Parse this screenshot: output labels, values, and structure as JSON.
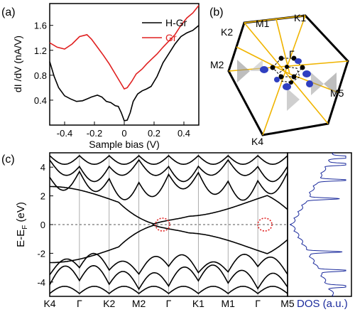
{
  "figure": {
    "panel_labels": [
      "(a)",
      "(b)",
      "(c)"
    ]
  },
  "chart_data": [
    {
      "panel": "(a)",
      "type": "line",
      "xlabel": "Sample bias (V)",
      "ylabel": "dI /dV  (nA/V)",
      "xlim": [
        -0.5,
        0.5
      ],
      "ylim": [
        0.0,
        1.95
      ],
      "xticks": [
        -0.4,
        -0.2,
        0,
        0.2,
        0.4
      ],
      "xtick_labels": [
        "-0.4",
        "-0.2",
        "0",
        "0.2",
        "0.4"
      ],
      "yticks": [
        0.4,
        0.8,
        1.2,
        1.6
      ],
      "ytick_labels": [
        "0.4",
        "0.8",
        "1.2",
        "1.6"
      ],
      "legend_position": "top-right",
      "series": [
        {
          "name": "H-Gr",
          "color": "#000000",
          "x": [
            -0.5,
            -0.47,
            -0.44,
            -0.4,
            -0.36,
            -0.32,
            -0.28,
            -0.25,
            -0.22,
            -0.18,
            -0.15,
            -0.12,
            -0.09,
            -0.06,
            -0.04,
            -0.02,
            0.0,
            0.02,
            0.04,
            0.06,
            0.09,
            0.12,
            0.15,
            0.18,
            0.22,
            0.26,
            0.3,
            0.34,
            0.38,
            0.42,
            0.46,
            0.5
          ],
          "y": [
            1.02,
            0.78,
            0.6,
            0.47,
            0.42,
            0.38,
            0.39,
            0.42,
            0.45,
            0.48,
            0.45,
            0.38,
            0.36,
            0.31,
            0.3,
            0.2,
            0.07,
            0.08,
            0.2,
            0.38,
            0.5,
            0.55,
            0.58,
            0.62,
            0.78,
            1.0,
            1.15,
            1.3,
            1.42,
            1.48,
            1.52,
            1.6
          ]
        },
        {
          "name": "Gr",
          "color": "#e02020",
          "x": [
            -0.5,
            -0.45,
            -0.4,
            -0.35,
            -0.3,
            -0.25,
            -0.22,
            -0.18,
            -0.14,
            -0.1,
            -0.06,
            -0.03,
            0.0,
            0.02,
            0.05,
            0.08,
            0.12,
            0.15,
            0.18,
            0.22,
            0.26,
            0.3,
            0.34,
            0.38,
            0.42,
            0.46,
            0.5
          ],
          "y": [
            1.32,
            1.25,
            1.22,
            1.3,
            1.42,
            1.45,
            1.38,
            1.25,
            1.12,
            0.98,
            0.82,
            0.7,
            0.58,
            0.6,
            0.7,
            0.82,
            0.9,
            0.98,
            1.05,
            1.14,
            1.25,
            1.35,
            1.45,
            1.6,
            1.72,
            1.8,
            1.92
          ]
        }
      ]
    },
    {
      "panel": "(b)",
      "type": "diagram",
      "labels": [
        "K1",
        "M1",
        "K2",
        "M2",
        "M5",
        "K4",
        "Γ"
      ]
    },
    {
      "panel": "(c)",
      "type": "line",
      "ylabel_main": "E-E",
      "ylabel_sub": "F",
      "ylabel_unit": " (eV)",
      "ylim": [
        -5,
        5
      ],
      "yticks": [
        4,
        2,
        0,
        -2,
        -4
      ],
      "ytick_labels": [
        "4",
        "2",
        "0",
        "-2",
        "-4"
      ],
      "k_labels": [
        "K4",
        "Γ",
        "K2",
        "M2",
        "Γ",
        "K1",
        "M1",
        "Γ",
        "M5"
      ],
      "fermi_level": 0,
      "dirac_points": [
        3.5,
        8.5
      ],
      "dos_label": "DOS",
      "dos_unit": " (a.u.)",
      "dos_color": "#1a2a9c"
    }
  ]
}
